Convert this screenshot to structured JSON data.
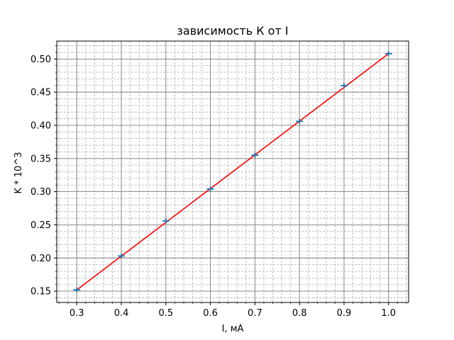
{
  "chart_data": {
    "type": "line",
    "title": "зависимость К от I",
    "xlabel": "I, мА",
    "ylabel": "K * 10^3",
    "xlim": [
      0.255,
      1.045
    ],
    "ylim": [
      0.133,
      0.527
    ],
    "grid": true,
    "x_ticks": [
      "0.3",
      "0.4",
      "0.5",
      "0.6",
      "0.7",
      "0.8",
      "0.9",
      "1.0"
    ],
    "y_ticks": [
      "0.15",
      "0.20",
      "0.25",
      "0.30",
      "0.35",
      "0.40",
      "0.45",
      "0.50"
    ],
    "series": [
      {
        "kind": "errorbar-points",
        "color": "#1f77b4",
        "x": [
          0.3,
          0.4,
          0.5,
          0.6,
          0.7,
          0.8,
          0.9,
          1.0
        ],
        "y": [
          0.152,
          0.203,
          0.256,
          0.304,
          0.355,
          0.406,
          0.46,
          0.508
        ],
        "xerr": 0.008
      },
      {
        "kind": "fit-line",
        "color": "#ff0000",
        "x": [
          0.3,
          1.0
        ],
        "y": [
          0.152,
          0.508
        ]
      }
    ]
  }
}
